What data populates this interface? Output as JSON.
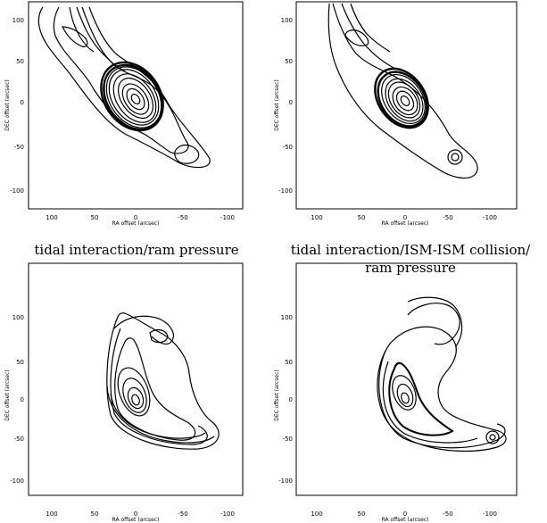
{
  "panels": [
    {
      "id": "p0",
      "xlabel": "RA offset (arcsec)",
      "ylabel": "DEC offset (arcsec)",
      "xticks": [
        "100",
        "50",
        "0",
        "-50",
        "-100"
      ],
      "yticks": [
        "100",
        "50",
        "0",
        "-50",
        "-100"
      ],
      "caption": [
        "tidal interaction/ram pressure"
      ]
    },
    {
      "id": "p1",
      "xlabel": "RA offset (arcsec)",
      "ylabel": "DEC offset (arcsec)",
      "xticks": [
        "100",
        "50",
        "0",
        "-50",
        "-100"
      ],
      "yticks": [
        "100",
        "50",
        "0",
        "-50",
        "-100"
      ],
      "caption": [
        "tidal interaction/ISM-ISM collision/",
        "ram pressure"
      ]
    },
    {
      "id": "p2",
      "xlabel": "RA offset (arcsec)",
      "ylabel": "DEC offset (arcsec)",
      "xticks": [
        "100",
        "50",
        "0",
        "-50",
        "-100"
      ],
      "yticks": [
        "100",
        "50",
        "0",
        "-50",
        "-100"
      ],
      "caption": []
    },
    {
      "id": "p3",
      "xlabel": "RA offset (arcsec)",
      "ylabel": "DEC offset (arcsec)",
      "xticks": [
        "100",
        "50",
        "0",
        "-50",
        "-100"
      ],
      "yticks": [
        "100",
        "50",
        "0",
        "-50",
        "-100"
      ],
      "caption": []
    }
  ]
}
